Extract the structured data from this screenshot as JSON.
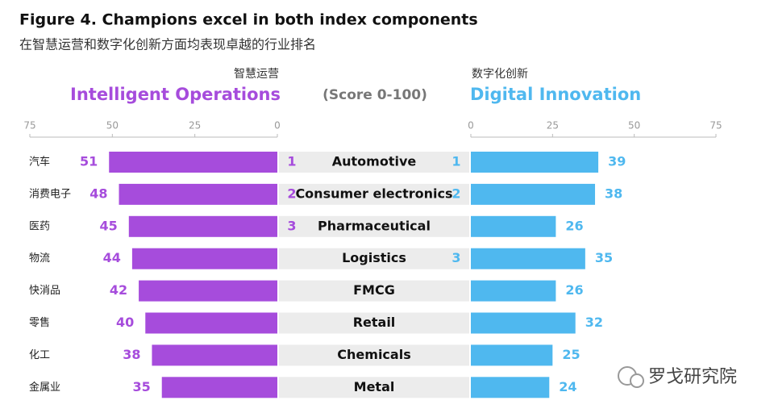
{
  "chart_data": {
    "type": "butterfly",
    "title": "Figure 4. Champions excel in both index components",
    "subtitle": "在智慧运营和数字化创新方面均表现卓越的行业排名",
    "scale_label": "(Score 0-100)",
    "categories": [
      "汽车",
      "消费电子",
      "医药",
      "物流",
      "快消品",
      "零售",
      "化工",
      "金属业"
    ],
    "industries": [
      "Automotive",
      "Consumer electronics",
      "Pharmaceutical",
      "Logistics",
      "FMCG",
      "Retail",
      "Chemicals",
      "Metal"
    ],
    "series": [
      {
        "name": "Intelligent Operations",
        "name_cn": "智慧运营",
        "color": "#a64cdc",
        "values": [
          51,
          48,
          45,
          44,
          42,
          40,
          38,
          35
        ],
        "ranks": [
          1,
          2,
          3,
          null,
          null,
          null,
          null,
          null
        ],
        "xlim": [
          0,
          75
        ],
        "xticks": [
          75,
          50,
          25,
          0
        ]
      },
      {
        "name": "Digital Innovation",
        "name_cn": "数字化创新",
        "color": "#4fb8ef",
        "values": [
          39,
          38,
          26,
          35,
          26,
          32,
          25,
          24
        ],
        "ranks": [
          1,
          2,
          null,
          3,
          null,
          null,
          null,
          null
        ],
        "xlim": [
          0,
          75
        ],
        "xticks": [
          0,
          25,
          50,
          75
        ]
      }
    ],
    "watermark": "罗戈研究院"
  }
}
